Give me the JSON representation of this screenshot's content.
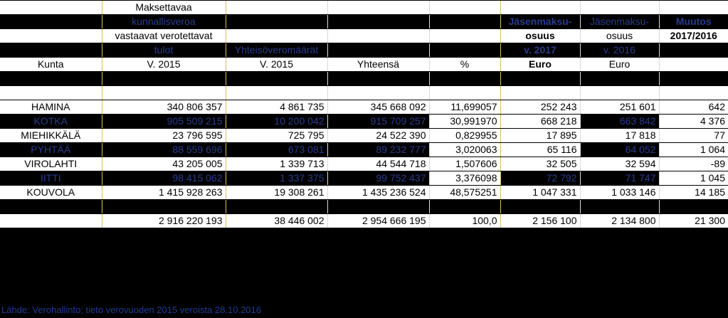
{
  "header": {
    "r1": {
      "c1": "Maksettavaa"
    },
    "r2": {
      "c1": "kunnallisveroa",
      "c5": "Jäsenmaksu-",
      "c6": "Jäsenmaksu-",
      "c7": "Muutos"
    },
    "r3": {
      "c1": "vastaavat verotettavat",
      "c5": "osuus",
      "c6": "osuus",
      "c7": "2017/2016"
    },
    "r4": {
      "c1": "tulot",
      "c2": "Yhteisöveromäärät",
      "c5": "v. 2017",
      "c6": "v. 2016"
    },
    "r5": {
      "c0": "Kunta",
      "c1": "V. 2015",
      "c2": "V. 2015",
      "c3": "Yhteensä",
      "c4": "%",
      "c5": "Euro",
      "c6": "Euro"
    }
  },
  "rows": [
    {
      "kunta": "HAMINA",
      "tulot": "340 806 357",
      "yhteis": "4 861 735",
      "yht": "345 668 092",
      "pct": "11,699057",
      "j17": "252 243",
      "j16": "251 601",
      "muutos": "642"
    },
    {
      "kunta": "KOTKA",
      "tulot": "905 509 215",
      "yhteis": "10 200 042",
      "yht": "915 709 257",
      "pct": "30,991970",
      "j17": "668 218",
      "j16": "663 842",
      "muutos": "4 376"
    },
    {
      "kunta": "MIEHIKKÄLÄ",
      "tulot": "23 796 595",
      "yhteis": "725 795",
      "yht": "24 522 390",
      "pct": "0,829955",
      "j17": "17 895",
      "j16": "17 818",
      "muutos": "77"
    },
    {
      "kunta": "PYHTÄÄ",
      "tulot": "88 559 696",
      "yhteis": "673 081",
      "yht": "89 232 777",
      "pct": "3,020063",
      "j17": "65 116",
      "j16": "64 052",
      "muutos": "1 064"
    },
    {
      "kunta": "VIROLAHTI",
      "tulot": "43 205 005",
      "yhteis": "1 339 713",
      "yht": "44 544 718",
      "pct": "1,507606",
      "j17": "32 505",
      "j16": "32 594",
      "muutos": "-89"
    },
    {
      "kunta": "IITTI",
      "tulot": "98 415 062",
      "yhteis": "1 337 375",
      "yht": "99 752 437",
      "pct": "3,376098",
      "j17": "72 792",
      "j16": "71 747",
      "muutos": "1 045"
    },
    {
      "kunta": "KOUVOLA",
      "tulot": "1 415 928 263",
      "yhteis": "19 308 261",
      "yht": "1 435 236 524",
      "pct": "48,575251",
      "j17": "1 047 331",
      "j16": "1 033 146",
      "muutos": "14 185"
    }
  ],
  "total": {
    "tulot": "2 916 220 193",
    "yhteis": "38 446 002",
    "yht": "2 954 666 195",
    "pct": "100,0",
    "j17": "2 156 100",
    "j16": "2 134 800",
    "muutos": "21 300"
  },
  "source": "Lähde:  Verohallinto;  tieto verovuoden 2015 veroista 28.10.2016"
}
